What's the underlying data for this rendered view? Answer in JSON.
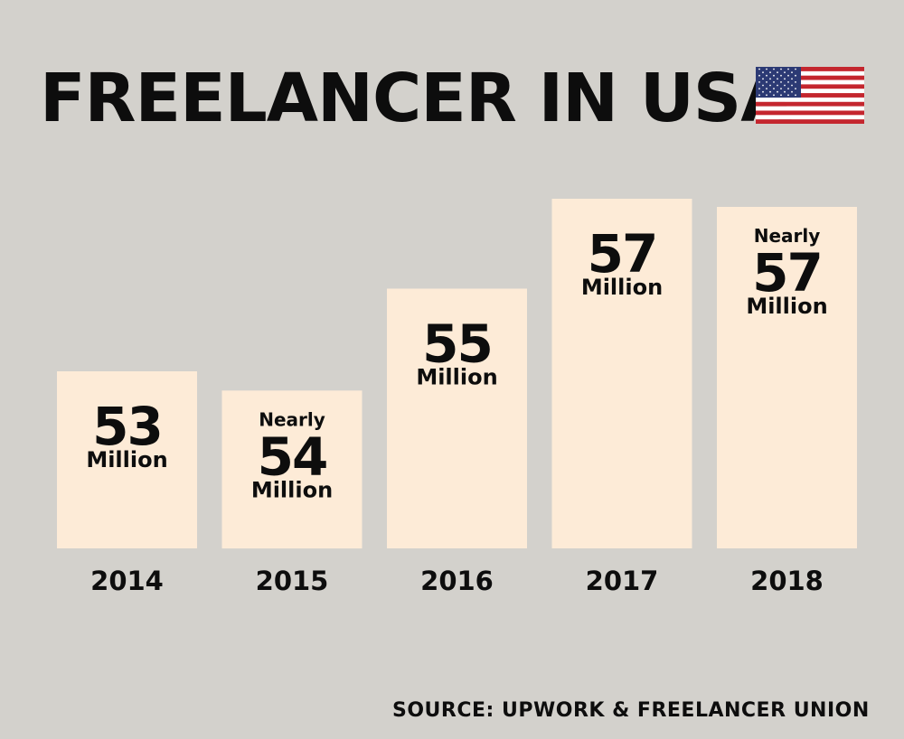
{
  "chart_data": {
    "type": "bar",
    "title": "FREELANCER IN USA",
    "categories": [
      "2014",
      "2015",
      "2016",
      "2017",
      "2018"
    ],
    "values": [
      53,
      54,
      55,
      57,
      57
    ],
    "bar_labels": [
      {
        "prefix": "",
        "number": "53",
        "unit": "Million"
      },
      {
        "prefix": "Nearly",
        "number": "54",
        "unit": "Million"
      },
      {
        "prefix": "",
        "number": "55",
        "unit": "Million"
      },
      {
        "prefix": "",
        "number": "57",
        "unit": "Million"
      },
      {
        "prefix": "Nearly",
        "number": "57",
        "unit": "Million"
      }
    ],
    "xlabel": "",
    "ylabel": "",
    "grid": false,
    "bar_color": "#fdebd7"
  },
  "header": {
    "title": "FREELANCER IN USA",
    "flag_icon": "usa-flag-icon"
  },
  "footer": {
    "source": "SOURCE: UPWORK & FREELANCER UNION"
  },
  "colors": {
    "background": "#d3d1cc",
    "bar": "#fdebd7",
    "text": "#0d0d0d",
    "flag_red": "#c4262e",
    "flag_blue": "#2c3a74"
  }
}
